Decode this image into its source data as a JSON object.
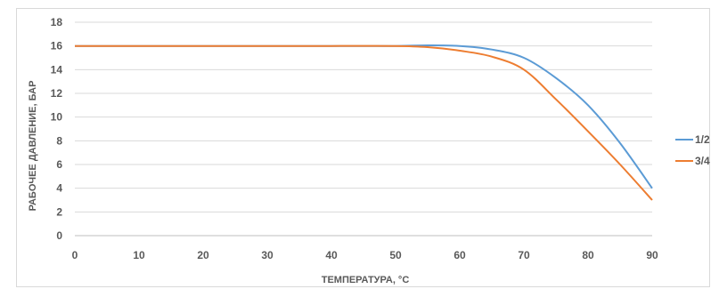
{
  "chart_data": {
    "type": "line",
    "xlabel": "ТЕМПЕРАТУРА, °С",
    "ylabel": "РАБОЧЕЕ ДАВЛЕНИЕ, БАР",
    "xlim": [
      0,
      90
    ],
    "ylim": [
      0,
      18
    ],
    "x_ticks": [
      0,
      10,
      20,
      30,
      40,
      50,
      60,
      70,
      80,
      90
    ],
    "y_ticks": [
      0,
      2,
      4,
      6,
      8,
      10,
      12,
      14,
      16,
      18
    ],
    "grid": true,
    "legend_position": "right",
    "series": [
      {
        "name": "1/2",
        "color": "#5b9bd5",
        "x": [
          0,
          10,
          20,
          30,
          40,
          50,
          55,
          60,
          65,
          70,
          75,
          80,
          85,
          90
        ],
        "values": [
          16,
          16,
          16,
          16,
          16,
          16,
          16.05,
          16,
          15.7,
          15,
          13.3,
          11,
          7.8,
          4
        ]
      },
      {
        "name": "3/4",
        "color": "#ed7d31",
        "x": [
          0,
          10,
          20,
          30,
          40,
          50,
          55,
          60,
          65,
          70,
          75,
          80,
          85,
          90
        ],
        "values": [
          16,
          16,
          16,
          16,
          16,
          16,
          15.9,
          15.6,
          15.1,
          14,
          11.5,
          8.8,
          6,
          3
        ]
      }
    ]
  }
}
